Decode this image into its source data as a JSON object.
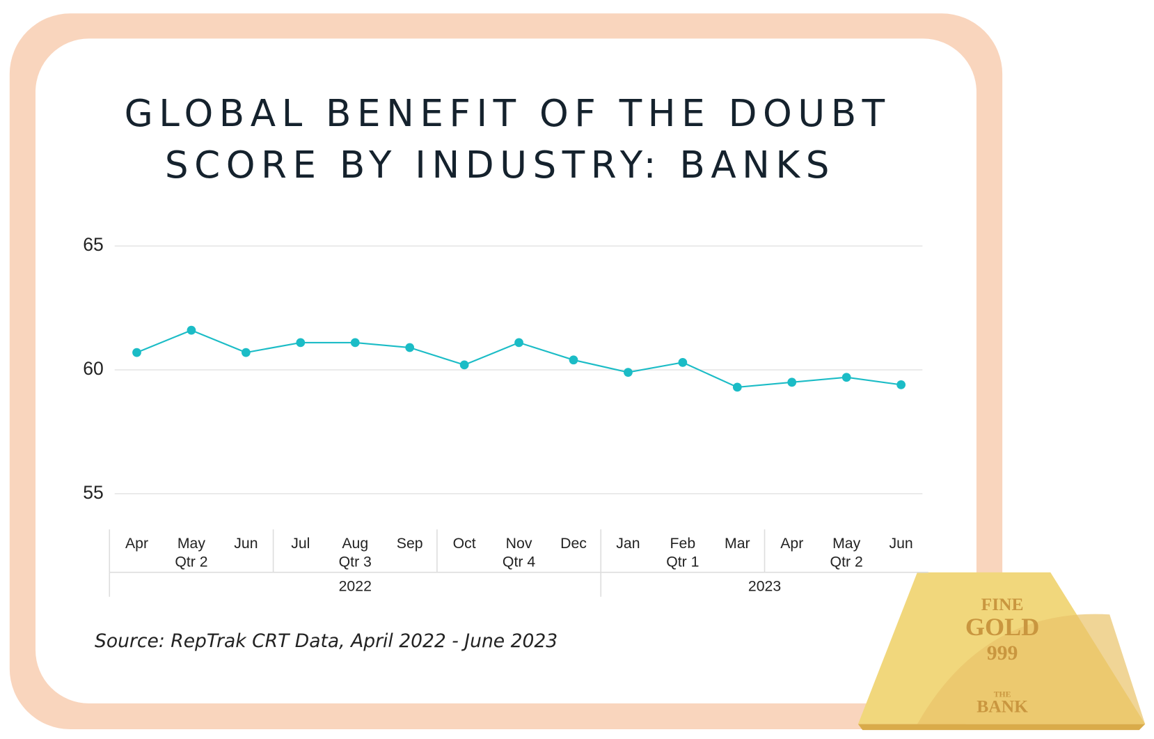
{
  "chart_data": {
    "type": "line",
    "title": [
      "GLOBAL BENEFIT OF THE DOUBT",
      "SCORE BY INDUSTRY: BANKS"
    ],
    "categories": [
      "Apr",
      "May",
      "Jun",
      "Jul",
      "Aug",
      "Sep",
      "Oct",
      "Nov",
      "Dec",
      "Jan",
      "Feb",
      "Mar",
      "Apr",
      "May",
      "Jun"
    ],
    "quarters": [
      {
        "label": "Qtr 2",
        "count": 3
      },
      {
        "label": "Qtr 3",
        "count": 3
      },
      {
        "label": "Qtr 4",
        "count": 3
      },
      {
        "label": "Qtr 1",
        "count": 3
      },
      {
        "label": "Qtr 2",
        "count": 3
      }
    ],
    "years": [
      {
        "label": "2022",
        "count": 9
      },
      {
        "label": "2023",
        "count": 6
      }
    ],
    "values": [
      60.7,
      61.6,
      60.7,
      61.1,
      61.1,
      60.9,
      60.2,
      61.1,
      60.4,
      59.9,
      60.3,
      59.3,
      59.5,
      59.7,
      59.4
    ],
    "color": "#1bbcc6",
    "ylim": [
      53.5,
      66.5
    ],
    "yticks": [
      55,
      60,
      65
    ],
    "grid": true,
    "source": "Source: RepTrak CRT Data, April 2022 - June 2023"
  },
  "gold_bar": {
    "lines": [
      "FINE",
      "GOLD",
      "999",
      "THE",
      "BANK"
    ]
  }
}
